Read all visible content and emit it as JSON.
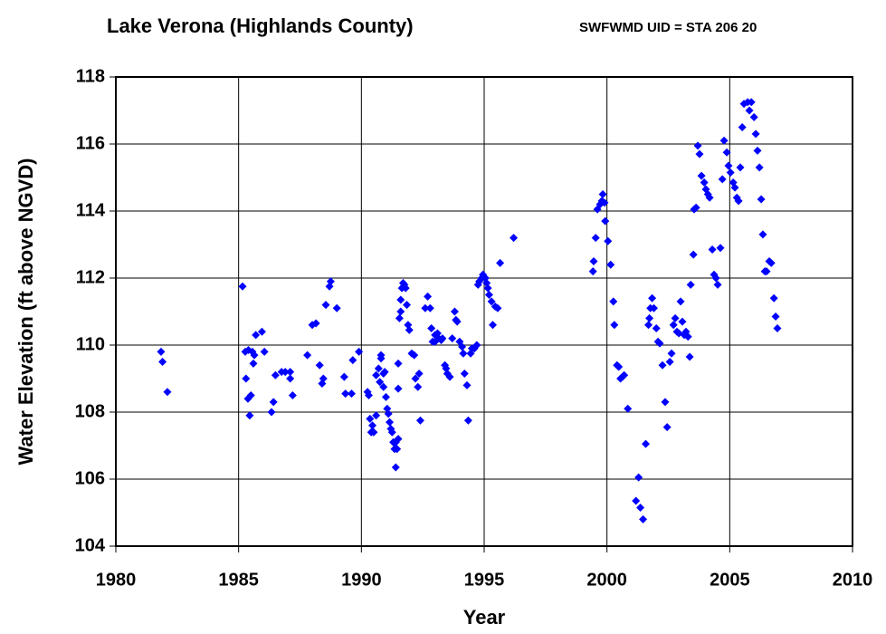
{
  "chart_data": {
    "type": "scatter",
    "title": "Lake Verona (Highlands County)",
    "subtitle": "SWFWMD UID = STA 206 20",
    "xlabel": "Year",
    "ylabel": "Water Elevation (ft above NGVD)",
    "xlim": [
      1980,
      2010
    ],
    "xticks": [
      1980,
      1985,
      1990,
      1995,
      2000,
      2005,
      2010
    ],
    "ylim": [
      104,
      118
    ],
    "yticks": [
      104,
      106,
      108,
      110,
      112,
      114,
      116,
      118
    ],
    "grid": true,
    "series": [
      {
        "color": "#0000ff",
        "x": [
          1981.84,
          1981.9,
          1982.1,
          1985.16,
          1985.27,
          1985.4,
          1985.3,
          1985.38,
          1985.45,
          1985.5,
          1985.56,
          1985.64,
          1985.6,
          1985.7,
          1985.95,
          1986.05,
          1986.34,
          1986.42,
          1986.5,
          1986.75,
          1986.9,
          1987.1,
          1987.1,
          1987.2,
          1987.8,
          1988.0,
          1988.15,
          1988.3,
          1988.4,
          1988.45,
          1988.55,
          1988.7,
          1988.75,
          1989.0,
          1989.3,
          1989.35,
          1989.6,
          1989.65,
          1989.9,
          1990.25,
          1990.3,
          1990.35,
          1990.4,
          1990.45,
          1990.5,
          1990.6,
          1990.6,
          1990.7,
          1990.75,
          1990.8,
          1990.8,
          1990.9,
          1990.9,
          1990.95,
          1991.0,
          1991.05,
          1991.1,
          1991.15,
          1991.2,
          1991.25,
          1991.3,
          1991.35,
          1991.4,
          1991.4,
          1991.45,
          1991.5,
          1991.5,
          1991.5,
          1991.55,
          1991.6,
          1991.6,
          1991.65,
          1991.7,
          1991.75,
          1991.8,
          1991.85,
          1991.9,
          1991.95,
          1992.05,
          1992.15,
          1992.2,
          1992.3,
          1992.35,
          1992.4,
          1992.6,
          1992.7,
          1992.8,
          1992.85,
          1992.9,
          1993.0,
          1993.0,
          1993.1,
          1993.15,
          1993.25,
          1993.3,
          1993.4,
          1993.45,
          1993.5,
          1993.6,
          1993.7,
          1993.8,
          1993.85,
          1993.9,
          1994.0,
          1994.1,
          1994.15,
          1994.2,
          1994.3,
          1994.35,
          1994.45,
          1994.5,
          1994.6,
          1994.7,
          1994.75,
          1994.8,
          1994.9,
          1994.95,
          1995.05,
          1995.1,
          1995.15,
          1995.2,
          1995.3,
          1995.35,
          1995.45,
          1995.55,
          1995.65,
          1996.2,
          1999.43,
          1999.46,
          1999.54,
          1999.61,
          1999.72,
          1999.79,
          1999.83,
          1999.9,
          1999.93,
          2000.04,
          2000.15,
          2000.26,
          2000.3,
          2000.41,
          2000.48,
          2000.55,
          2000.63,
          2000.7,
          2000.85,
          2001.18,
          2001.29,
          2001.36,
          2001.47,
          2001.58,
          2001.69,
          2001.73,
          2001.84,
          2001.77,
          2001.91,
          2002.01,
          2002.08,
          2002.15,
          2002.26,
          2002.37,
          2002.45,
          2002.56,
          2002.63,
          2002.71,
          2002.78,
          2002.85,
          2002.93,
          2003.0,
          2003.07,
          2003.15,
          2003.22,
          2003.3,
          2003.37,
          2003.41,
          2003.52,
          2003.55,
          2003.63,
          2003.7,
          2003.77,
          2003.85,
          2003.96,
          2004.03,
          2004.11,
          2004.18,
          2004.29,
          2004.36,
          2004.44,
          2004.51,
          2004.62,
          2004.7,
          2004.77,
          2004.88,
          2004.95,
          2005.03,
          2005.14,
          2005.21,
          2005.29,
          2005.36,
          2005.43,
          2005.51,
          2005.58,
          2005.73,
          2005.8,
          2005.88,
          2005.99,
          2006.06,
          2006.13,
          2006.21,
          2006.28,
          2006.35,
          2006.43,
          2006.5,
          2006.61,
          2006.69,
          2006.8,
          2006.87,
          2006.94
        ],
        "values": [
          109.8,
          109.5,
          108.6,
          111.75,
          109.8,
          109.85,
          109.0,
          108.4,
          107.9,
          108.5,
          109.8,
          109.7,
          109.45,
          110.3,
          110.4,
          109.8,
          108.0,
          108.3,
          109.1,
          109.2,
          109.2,
          109.2,
          109.0,
          108.5,
          109.7,
          110.6,
          110.65,
          109.4,
          108.85,
          109.0,
          111.2,
          111.75,
          111.9,
          111.1,
          109.05,
          108.55,
          108.55,
          109.55,
          109.8,
          108.6,
          108.5,
          107.8,
          107.4,
          107.6,
          107.4,
          107.9,
          109.1,
          109.3,
          108.9,
          109.7,
          109.6,
          109.15,
          108.75,
          109.2,
          108.45,
          108.1,
          107.95,
          107.7,
          107.5,
          107.4,
          107.1,
          106.9,
          106.35,
          107.1,
          106.9,
          107.2,
          108.7,
          109.45,
          110.8,
          111.0,
          111.35,
          111.7,
          111.85,
          111.8,
          111.7,
          111.2,
          110.6,
          110.45,
          109.75,
          109.7,
          109.0,
          108.75,
          109.15,
          107.75,
          111.1,
          111.45,
          111.1,
          110.5,
          110.1,
          110.3,
          110.1,
          110.35,
          110.2,
          110.15,
          110.2,
          109.4,
          109.3,
          109.15,
          109.05,
          110.2,
          111.0,
          110.75,
          110.7,
          110.1,
          109.95,
          109.75,
          109.15,
          108.8,
          107.75,
          109.75,
          109.9,
          109.9,
          110.0,
          111.8,
          111.9,
          112.0,
          112.1,
          112.0,
          111.85,
          111.7,
          111.5,
          111.3,
          110.6,
          111.15,
          111.1,
          112.45,
          113.2,
          112.2,
          112.5,
          113.2,
          114.05,
          114.2,
          114.3,
          114.5,
          114.25,
          113.7,
          113.1,
          112.4,
          111.3,
          110.6,
          109.4,
          109.35,
          109.0,
          109.05,
          109.1,
          108.1,
          105.35,
          106.05,
          105.15,
          104.8,
          107.05,
          110.6,
          110.8,
          111.4,
          111.1,
          111.1,
          110.5,
          110.1,
          110.05,
          109.4,
          108.3,
          107.55,
          109.5,
          109.75,
          110.6,
          110.8,
          110.4,
          110.35,
          111.3,
          110.7,
          110.3,
          110.4,
          110.25,
          109.65,
          111.8,
          112.7,
          114.05,
          114.1,
          115.95,
          115.7,
          115.05,
          114.85,
          114.65,
          114.5,
          114.4,
          112.85,
          112.1,
          112.0,
          111.8,
          112.9,
          114.95,
          116.1,
          115.75,
          115.35,
          115.15,
          114.85,
          114.7,
          114.4,
          114.3,
          115.3,
          116.5,
          117.2,
          117.25,
          117.0,
          117.25,
          116.8,
          116.3,
          115.8,
          115.3,
          114.35,
          113.3,
          112.2,
          112.2,
          112.5,
          112.45,
          111.4,
          110.85,
          110.5
        ]
      }
    ]
  }
}
